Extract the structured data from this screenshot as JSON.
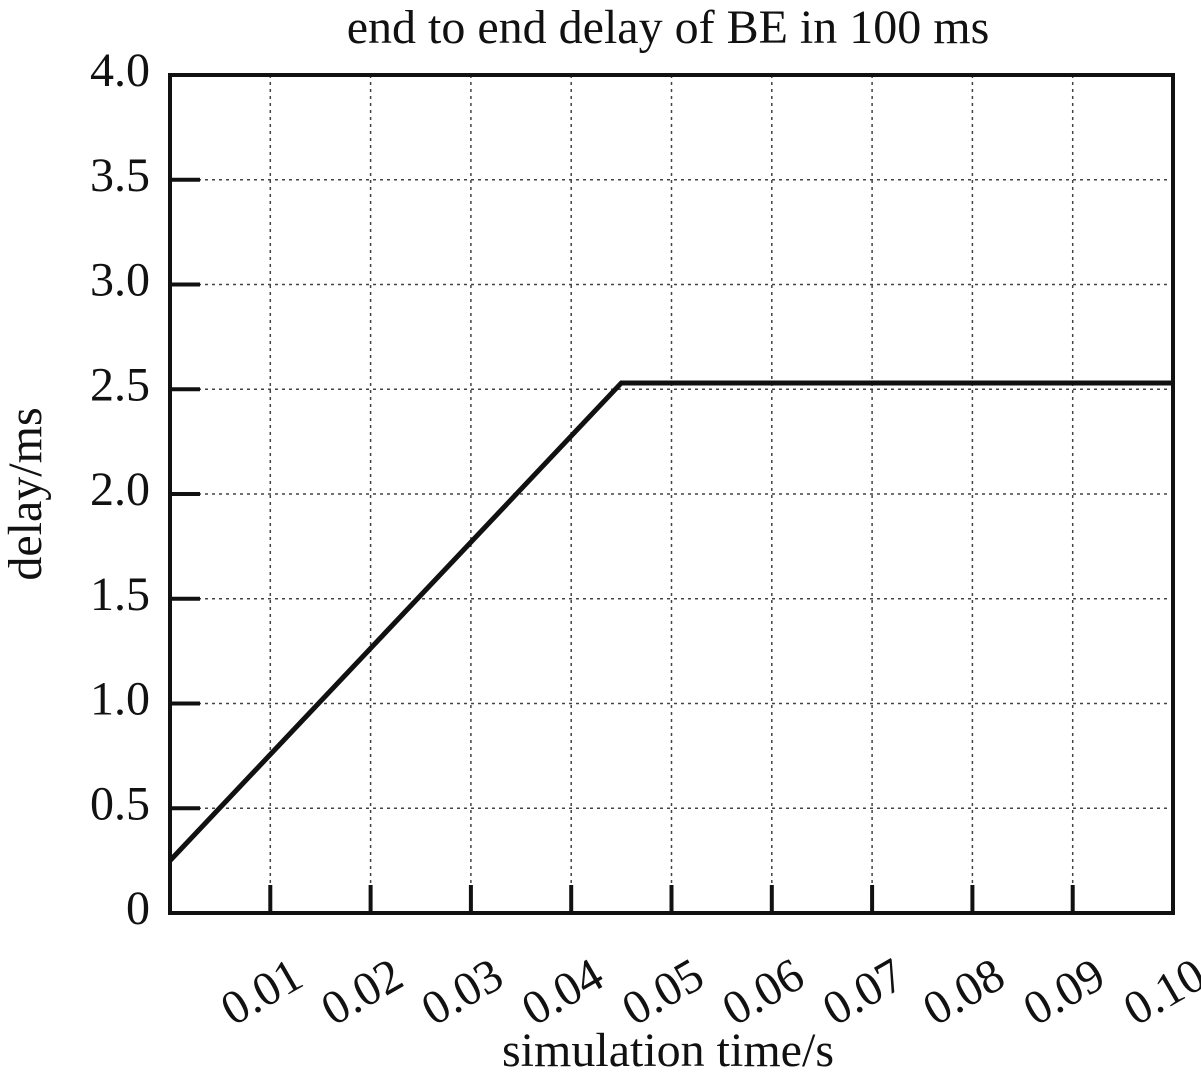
{
  "chart_data": {
    "type": "line",
    "title": "end to end delay of BE in 100 ms",
    "x_label": "simulation time/s",
    "y_label": "delay/ms",
    "xlim": [
      0,
      0.1
    ],
    "ylim": [
      0,
      4
    ],
    "xticks": [
      0.01,
      0.02,
      0.03,
      0.04,
      0.05,
      0.06,
      0.07,
      0.08,
      0.09,
      {
        "value": 0.1,
        "label": "0.10"
      }
    ],
    "yticks": [
      0,
      0.5,
      {
        "value": 1,
        "label": "1.0"
      },
      1.5,
      {
        "value": 2,
        "label": "2.0"
      },
      2.5,
      {
        "value": 3,
        "label": "3.0"
      },
      3.5,
      {
        "value": 4,
        "label": "4.0"
      }
    ],
    "grid": true,
    "series": [
      {
        "color": "#111111",
        "x": [
          0,
          0.045,
          0.1
        ],
        "values": [
          0.25,
          2.53,
          2.53
        ]
      }
    ]
  }
}
